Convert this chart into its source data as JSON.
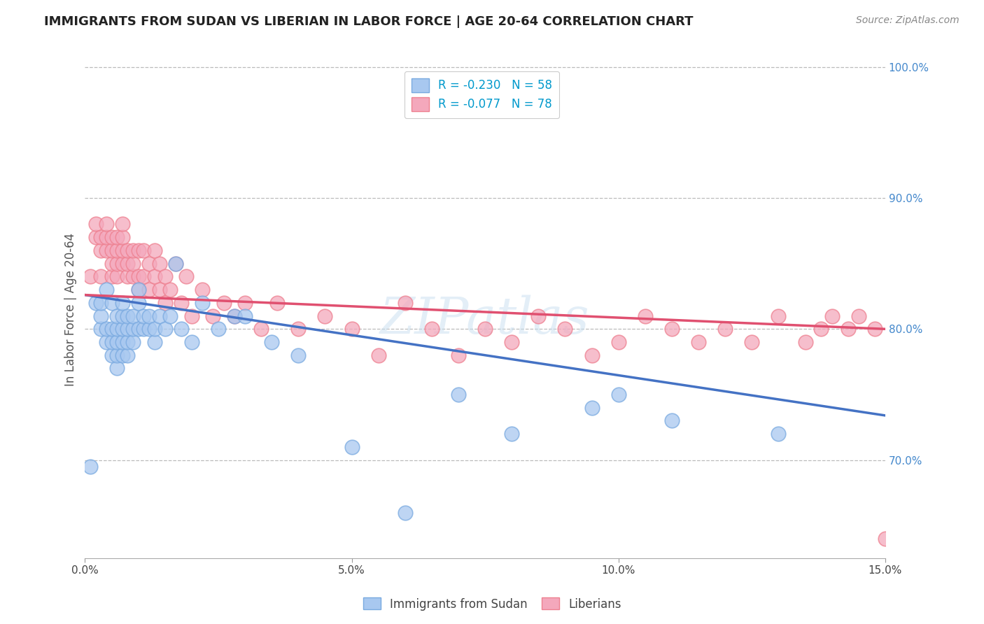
{
  "title": "IMMIGRANTS FROM SUDAN VS LIBERIAN IN LABOR FORCE | AGE 20-64 CORRELATION CHART",
  "source": "Source: ZipAtlas.com",
  "ylabel": "In Labor Force | Age 20-64",
  "xlim": [
    0.0,
    0.15
  ],
  "ylim": [
    0.625,
    1.005
  ],
  "xticks": [
    0.0,
    0.05,
    0.1,
    0.15
  ],
  "xticklabels": [
    "0.0%",
    "5.0%",
    "10.0%",
    "15.0%"
  ],
  "yticks": [
    0.7,
    0.8,
    0.9,
    1.0
  ],
  "yticklabels": [
    "70.0%",
    "80.0%",
    "90.0%",
    "100.0%"
  ],
  "sudan_color": "#A8C8F0",
  "liberian_color": "#F4A8BC",
  "sudan_edge_color": "#7AAAE0",
  "liberian_edge_color": "#EE8090",
  "sudan_line_color": "#4472C4",
  "liberian_line_color": "#E05070",
  "sudan_R": -0.23,
  "sudan_N": 58,
  "liberian_R": -0.077,
  "liberian_N": 78,
  "background_color": "#FFFFFF",
  "grid_color": "#BBBBBB",
  "title_color": "#222222",
  "axis_label_color": "#555555",
  "tick_color_x": "#444444",
  "tick_color_y": "#4488CC",
  "watermark": "ZIPatlas",
  "legend_labels": [
    "Immigrants from Sudan",
    "Liberians"
  ],
  "sudan_x": [
    0.001,
    0.002,
    0.003,
    0.003,
    0.003,
    0.004,
    0.004,
    0.004,
    0.005,
    0.005,
    0.005,
    0.005,
    0.006,
    0.006,
    0.006,
    0.006,
    0.006,
    0.007,
    0.007,
    0.007,
    0.007,
    0.007,
    0.008,
    0.008,
    0.008,
    0.008,
    0.009,
    0.009,
    0.009,
    0.01,
    0.01,
    0.01,
    0.011,
    0.011,
    0.012,
    0.012,
    0.013,
    0.013,
    0.014,
    0.015,
    0.016,
    0.017,
    0.018,
    0.02,
    0.022,
    0.025,
    0.028,
    0.03,
    0.035,
    0.04,
    0.05,
    0.06,
    0.07,
    0.08,
    0.095,
    0.1,
    0.11,
    0.13
  ],
  "sudan_y": [
    0.695,
    0.82,
    0.8,
    0.81,
    0.82,
    0.79,
    0.8,
    0.83,
    0.78,
    0.79,
    0.8,
    0.82,
    0.77,
    0.78,
    0.79,
    0.8,
    0.81,
    0.78,
    0.79,
    0.8,
    0.81,
    0.82,
    0.78,
    0.79,
    0.8,
    0.81,
    0.79,
    0.8,
    0.81,
    0.8,
    0.82,
    0.83,
    0.8,
    0.81,
    0.8,
    0.81,
    0.79,
    0.8,
    0.81,
    0.8,
    0.81,
    0.85,
    0.8,
    0.79,
    0.82,
    0.8,
    0.81,
    0.81,
    0.79,
    0.78,
    0.71,
    0.66,
    0.75,
    0.72,
    0.74,
    0.75,
    0.73,
    0.72
  ],
  "liberian_x": [
    0.001,
    0.002,
    0.002,
    0.003,
    0.003,
    0.003,
    0.004,
    0.004,
    0.004,
    0.005,
    0.005,
    0.005,
    0.005,
    0.006,
    0.006,
    0.006,
    0.006,
    0.007,
    0.007,
    0.007,
    0.007,
    0.008,
    0.008,
    0.008,
    0.009,
    0.009,
    0.009,
    0.01,
    0.01,
    0.01,
    0.011,
    0.011,
    0.012,
    0.012,
    0.013,
    0.013,
    0.014,
    0.014,
    0.015,
    0.015,
    0.016,
    0.017,
    0.018,
    0.019,
    0.02,
    0.022,
    0.024,
    0.026,
    0.028,
    0.03,
    0.033,
    0.036,
    0.04,
    0.045,
    0.05,
    0.055,
    0.06,
    0.065,
    0.07,
    0.075,
    0.08,
    0.085,
    0.09,
    0.095,
    0.1,
    0.105,
    0.11,
    0.115,
    0.12,
    0.125,
    0.13,
    0.135,
    0.138,
    0.14,
    0.143,
    0.145,
    0.148,
    0.15
  ],
  "liberian_y": [
    0.84,
    0.87,
    0.88,
    0.84,
    0.86,
    0.87,
    0.86,
    0.87,
    0.88,
    0.84,
    0.85,
    0.86,
    0.87,
    0.84,
    0.85,
    0.86,
    0.87,
    0.85,
    0.86,
    0.87,
    0.88,
    0.84,
    0.85,
    0.86,
    0.84,
    0.85,
    0.86,
    0.83,
    0.84,
    0.86,
    0.84,
    0.86,
    0.83,
    0.85,
    0.84,
    0.86,
    0.83,
    0.85,
    0.82,
    0.84,
    0.83,
    0.85,
    0.82,
    0.84,
    0.81,
    0.83,
    0.81,
    0.82,
    0.81,
    0.82,
    0.8,
    0.82,
    0.8,
    0.81,
    0.8,
    0.78,
    0.82,
    0.8,
    0.78,
    0.8,
    0.79,
    0.81,
    0.8,
    0.78,
    0.79,
    0.81,
    0.8,
    0.79,
    0.8,
    0.79,
    0.81,
    0.79,
    0.8,
    0.81,
    0.8,
    0.81,
    0.8,
    0.64
  ],
  "sudan_line_x0": 0.0,
  "sudan_line_y0": 0.826,
  "sudan_line_x1": 0.15,
  "sudan_line_y1": 0.734,
  "liberian_line_x0": 0.0,
  "liberian_line_y0": 0.826,
  "liberian_line_x1": 0.15,
  "liberian_line_y1": 0.8
}
